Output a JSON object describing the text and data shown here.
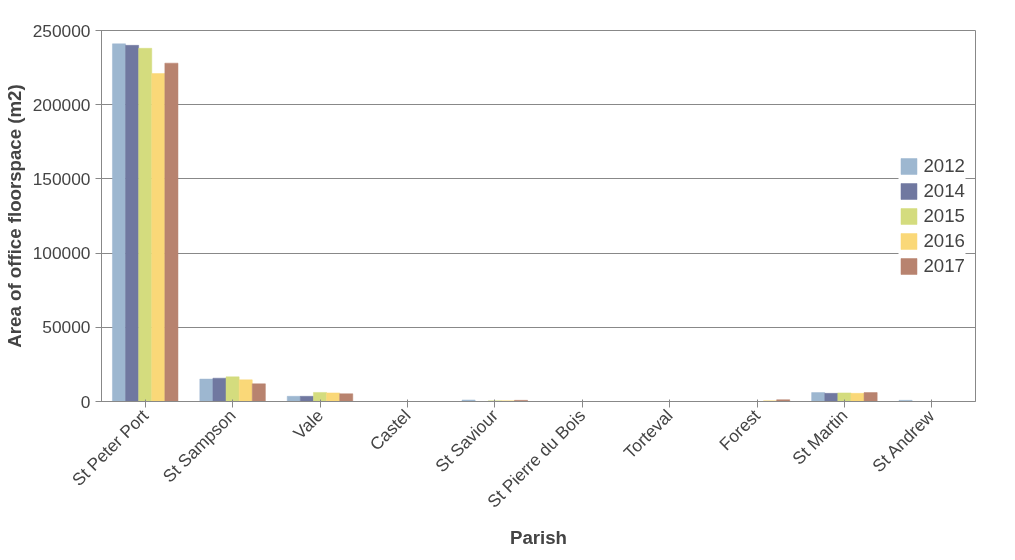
{
  "chart_data": {
    "type": "bar",
    "xlabel": "Parish",
    "ylabel": "Area of office floorspace (m2)",
    "categories": [
      "St Peter Port",
      "St Sampson",
      "Vale",
      "Castel",
      "St Saviour",
      "St Pierre du Bois",
      "Torteval",
      "Forest",
      "St Martin",
      "St Andrew"
    ],
    "series": [
      {
        "name": "2012",
        "color": "#9db7d0",
        "values": [
          241000,
          15100,
          3500,
          0,
          1000,
          0,
          0,
          null,
          6000,
          800
        ]
      },
      {
        "name": "2014",
        "color": "#7078a0",
        "values": [
          240000,
          15700,
          3500,
          0,
          null,
          0,
          0,
          null,
          5500,
          0
        ]
      },
      {
        "name": "2015",
        "color": "#d4dc7e",
        "values": [
          238000,
          16600,
          6100,
          0,
          500,
          0,
          0,
          null,
          5800,
          0
        ]
      },
      {
        "name": "2016",
        "color": "#fad878",
        "values": [
          221000,
          14600,
          5800,
          0,
          500,
          0,
          0,
          500,
          5500,
          0
        ]
      },
      {
        "name": "2017",
        "color": "#b8836f",
        "values": [
          228000,
          11900,
          5200,
          0,
          800,
          0,
          0,
          1200,
          6000,
          0
        ]
      }
    ],
    "ylim": [
      0,
      250000
    ],
    "yticks": [
      0,
      50000,
      100000,
      150000,
      200000,
      250000
    ],
    "grid": "y",
    "legend": "right"
  }
}
